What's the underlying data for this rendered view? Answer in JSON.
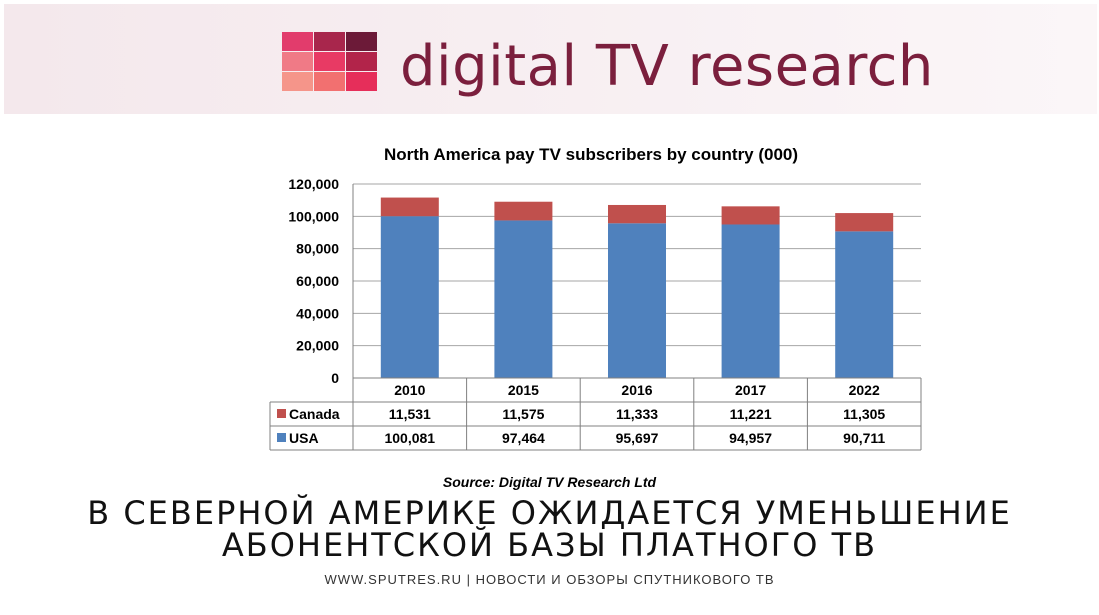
{
  "banner": {
    "brand_text": "digital TV research",
    "logo_colors": [
      "#e23c6c",
      "#a8264c",
      "#6c1a38",
      "#f07a86",
      "#e83a64",
      "#b2244a",
      "#f5958a",
      "#f27070",
      "#e62e5a"
    ]
  },
  "chart_data": {
    "type": "bar",
    "stacked": true,
    "title": "North America pay TV subscribers by country (000)",
    "categories": [
      "2010",
      "2015",
      "2016",
      "2017",
      "2022"
    ],
    "series": [
      {
        "name": "USA",
        "color": "#4f81bd",
        "values": [
          100081,
          97464,
          95697,
          94957,
          90711
        ],
        "labels": [
          "100,081",
          "97,464",
          "95,697",
          "94,957",
          "90,711"
        ]
      },
      {
        "name": "Canada",
        "color": "#c0504d",
        "values": [
          11531,
          11575,
          11333,
          11221,
          11305
        ],
        "labels": [
          "11,531",
          "11,575",
          "11,333",
          "11,221",
          "11,305"
        ]
      }
    ],
    "ylim": [
      0,
      120000
    ],
    "yticks": [
      "0",
      "20,000",
      "40,000",
      "60,000",
      "80,000",
      "100,000",
      "120,000"
    ],
    "grid": true,
    "data_table": true
  },
  "source": "Source: Digital TV Research Ltd",
  "headline": {
    "line1": "В СЕВЕРНОЙ АМЕРИКЕ ОЖИДАЕТСЯ УМЕНЬШЕНИЕ",
    "line2": "АБОНЕНТСКОЙ БАЗЫ ПЛАТНОГО ТВ"
  },
  "footer": "WWW.SPUTRES.RU | НОВОСТИ И ОБЗОРЫ СПУТНИКОВОГО ТВ"
}
